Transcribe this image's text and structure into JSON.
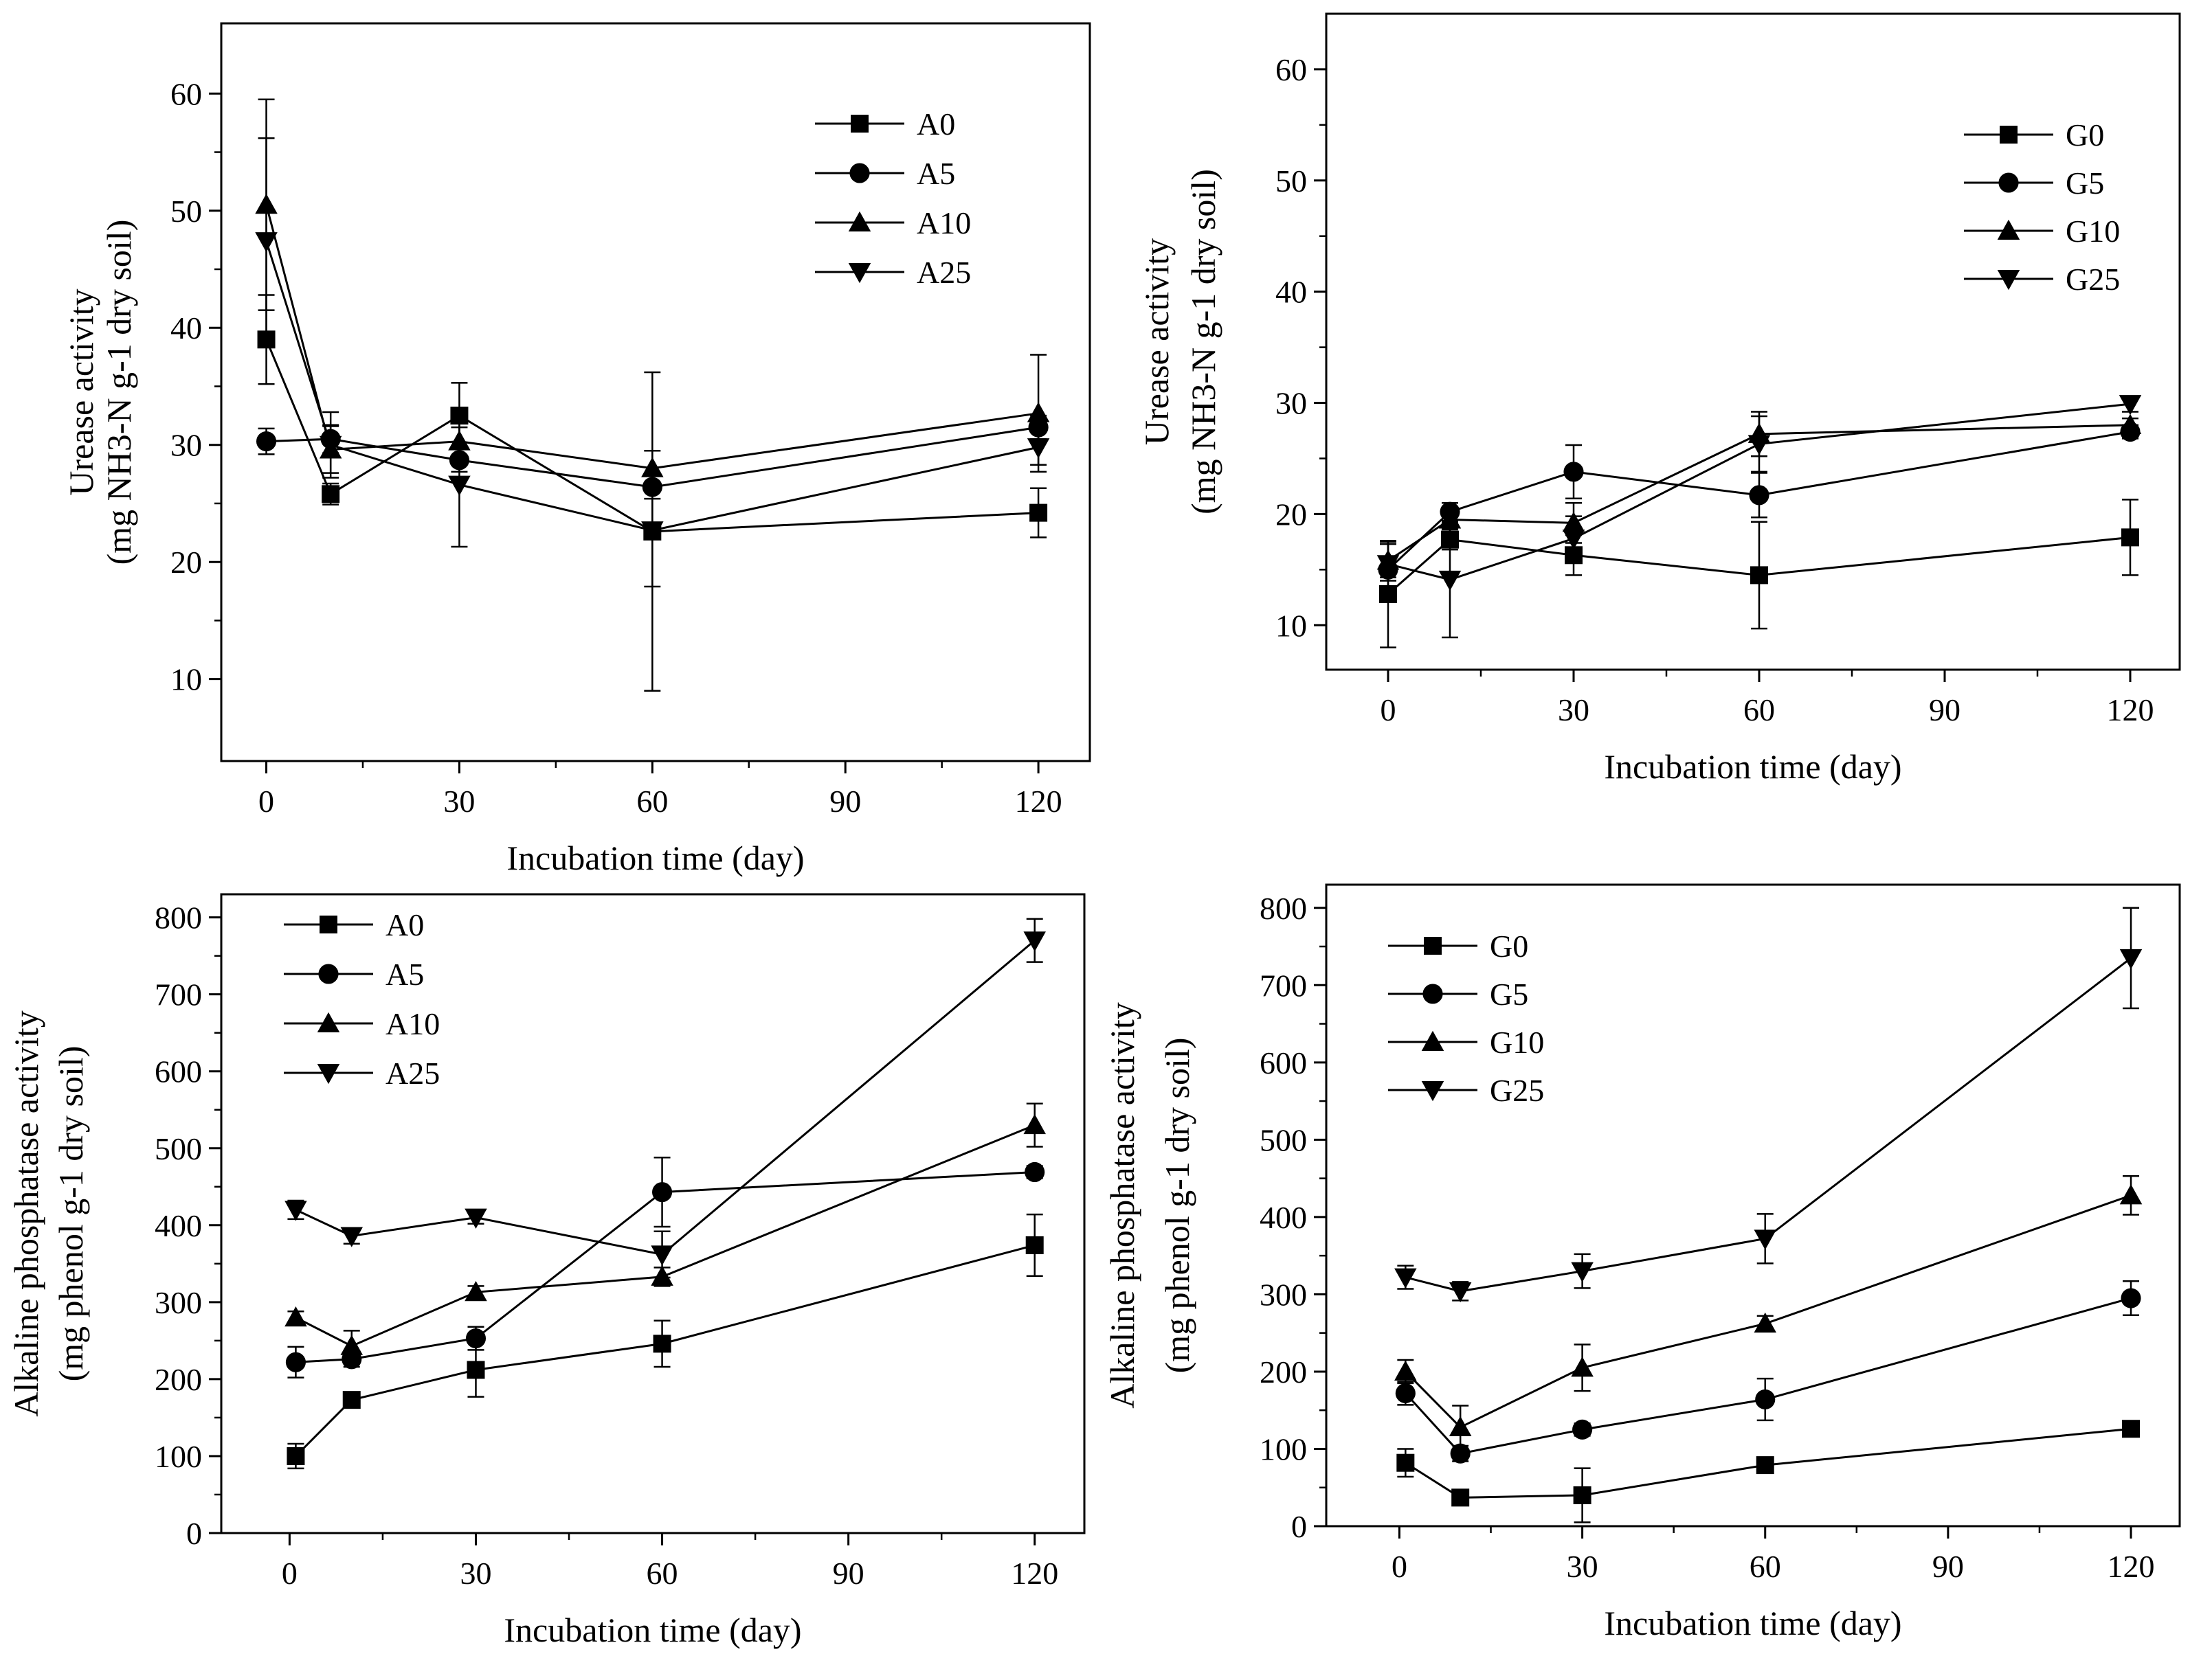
{
  "figure": {
    "panels_count": 4
  },
  "chart_data": [
    {
      "type": "line",
      "panel": "top-left",
      "ylabel_line1": "Urease activity",
      "ylabel_line2": "(mg NH3-N g-1 dry soil)",
      "xlabel": "Incubation time (day)",
      "xlim": [
        -7,
        128
      ],
      "ylim": [
        3,
        66
      ],
      "xticks": [
        0,
        30,
        60,
        90,
        120
      ],
      "xtick_labels": [
        "0",
        "30",
        "60",
        "90",
        "120"
      ],
      "yticks": [
        10,
        20,
        30,
        40,
        50,
        60
      ],
      "ytick_labels": [
        "10",
        "20",
        "30",
        "40",
        "50",
        "60"
      ],
      "legend_position": "upper-right",
      "x": [
        0,
        10,
        30,
        60,
        120
      ],
      "series": [
        {
          "name": "A0",
          "marker": "square",
          "values": [
            39.0,
            25.8,
            32.5,
            22.6,
            24.2
          ],
          "errors": [
            3.8,
            0.9,
            2.8,
            13.6,
            2.1
          ]
        },
        {
          "name": "A5",
          "marker": "circle",
          "values": [
            30.3,
            30.5,
            28.7,
            26.4,
            31.5
          ],
          "errors": [
            1.1,
            1.2,
            1.0,
            1.0,
            1.0
          ]
        },
        {
          "name": "A10",
          "marker": "triangle-up",
          "values": [
            50.5,
            29.6,
            30.3,
            28.0,
            32.7
          ],
          "errors": [
            9.0,
            2.0,
            1.2,
            1.5,
            5.0
          ]
        },
        {
          "name": "A25",
          "marker": "triangle-down",
          "values": [
            47.4,
            30.0,
            26.6,
            22.7,
            29.8
          ],
          "errors": [
            8.8,
            2.8,
            5.3,
            4.8,
            1.5
          ]
        }
      ]
    },
    {
      "type": "line",
      "panel": "top-right",
      "ylabel_line1": "Urease activity",
      "ylabel_line2": "(mg NH3-N g-1 dry soil)",
      "xlabel": "Incubation time (day)",
      "xlim": [
        -10,
        128
      ],
      "ylim": [
        6,
        65
      ],
      "xticks": [
        0,
        30,
        60,
        90,
        120
      ],
      "xtick_labels": [
        "0",
        "30",
        "60",
        "90",
        "120"
      ],
      "yticks": [
        10,
        20,
        30,
        40,
        50,
        60
      ],
      "ytick_labels": [
        "10",
        "20",
        "30",
        "40",
        "50",
        "60"
      ],
      "legend_position": "upper-right",
      "x": [
        0,
        10,
        30,
        60,
        120
      ],
      "series": [
        {
          "name": "G0",
          "marker": "square",
          "values": [
            12.8,
            17.7,
            16.3,
            14.5,
            17.9
          ],
          "errors": [
            4.8,
            0.9,
            1.8,
            4.8,
            3.4
          ]
        },
        {
          "name": "G5",
          "marker": "circle",
          "values": [
            15.0,
            20.2,
            23.8,
            21.7,
            27.4
          ],
          "errors": [
            1.0,
            0.8,
            2.4,
            2.0,
            0.6
          ]
        },
        {
          "name": "G10",
          "marker": "triangle-up",
          "values": [
            15.8,
            19.5,
            19.2,
            27.2,
            28.0
          ],
          "errors": [
            1.5,
            0.8,
            1.8,
            2.0,
            0.6
          ]
        },
        {
          "name": "G25",
          "marker": "triangle-down",
          "values": [
            15.5,
            14.1,
            17.8,
            26.3,
            29.9
          ],
          "errors": [
            2.0,
            5.2,
            2.0,
            2.5,
            0.7
          ]
        }
      ]
    },
    {
      "type": "line",
      "panel": "bottom-left",
      "ylabel_line1": "Alkaline phosphatase activity",
      "ylabel_line2": "(mg phenol g-1 dry soil)",
      "xlabel": "Incubation time (day)",
      "xlim": [
        -11,
        128
      ],
      "ylim": [
        0,
        830
      ],
      "xticks": [
        0,
        30,
        60,
        90,
        120
      ],
      "xtick_labels": [
        "0",
        "30",
        "60",
        "90",
        "120"
      ],
      "yticks": [
        0,
        100,
        200,
        300,
        400,
        500,
        600,
        700,
        800
      ],
      "ytick_labels": [
        "0",
        "100",
        "200",
        "300",
        "400",
        "500",
        "600",
        "700",
        "800"
      ],
      "legend_position": "upper-left",
      "x": [
        1,
        10,
        30,
        60,
        120
      ],
      "series": [
        {
          "name": "A0",
          "marker": "square",
          "values": [
            100,
            173,
            212,
            246,
            374
          ],
          "errors": [
            16,
            6,
            35,
            30,
            40
          ]
        },
        {
          "name": "A5",
          "marker": "circle",
          "values": [
            222,
            226,
            253,
            443,
            469
          ],
          "errors": [
            20,
            10,
            15,
            45,
            8
          ]
        },
        {
          "name": "A10",
          "marker": "triangle-up",
          "values": [
            280,
            243,
            313,
            333,
            530
          ],
          "errors": [
            8,
            20,
            8,
            12,
            28
          ]
        },
        {
          "name": "A25",
          "marker": "triangle-down",
          "values": [
            420,
            386,
            410,
            362,
            770
          ],
          "errors": [
            12,
            10,
            8,
            30,
            28
          ]
        }
      ]
    },
    {
      "type": "line",
      "panel": "bottom-right",
      "ylabel_line1": "Alkaline phosphatase activity",
      "ylabel_line2": "(mg phenol g-1 dry soil)",
      "xlabel": "Incubation time (day)",
      "xlim": [
        -12,
        128
      ],
      "ylim": [
        0,
        830
      ],
      "xticks": [
        0,
        30,
        60,
        90,
        120
      ],
      "xtick_labels": [
        "0",
        "30",
        "60",
        "90",
        "120"
      ],
      "yticks": [
        0,
        100,
        200,
        300,
        400,
        500,
        600,
        700,
        800
      ],
      "ytick_labels": [
        "0",
        "100",
        "200",
        "300",
        "400",
        "500",
        "600",
        "700",
        "800"
      ],
      "legend_position": "upper-left",
      "x": [
        1,
        10,
        30,
        60,
        120
      ],
      "series": [
        {
          "name": "G0",
          "marker": "square",
          "values": [
            82,
            37,
            40,
            79,
            126
          ],
          "errors": [
            18,
            6,
            35,
            10,
            5
          ]
        },
        {
          "name": "G5",
          "marker": "circle",
          "values": [
            172,
            94,
            125,
            164,
            295
          ],
          "errors": [
            15,
            10,
            8,
            27,
            22
          ]
        },
        {
          "name": "G10",
          "marker": "triangle-up",
          "values": [
            200,
            128,
            205,
            262,
            428
          ],
          "errors": [
            15,
            28,
            30,
            10,
            25
          ]
        },
        {
          "name": "G25",
          "marker": "triangle-down",
          "values": [
            322,
            304,
            330,
            372,
            735
          ],
          "errors": [
            15,
            12,
            22,
            32,
            65
          ]
        }
      ]
    }
  ]
}
